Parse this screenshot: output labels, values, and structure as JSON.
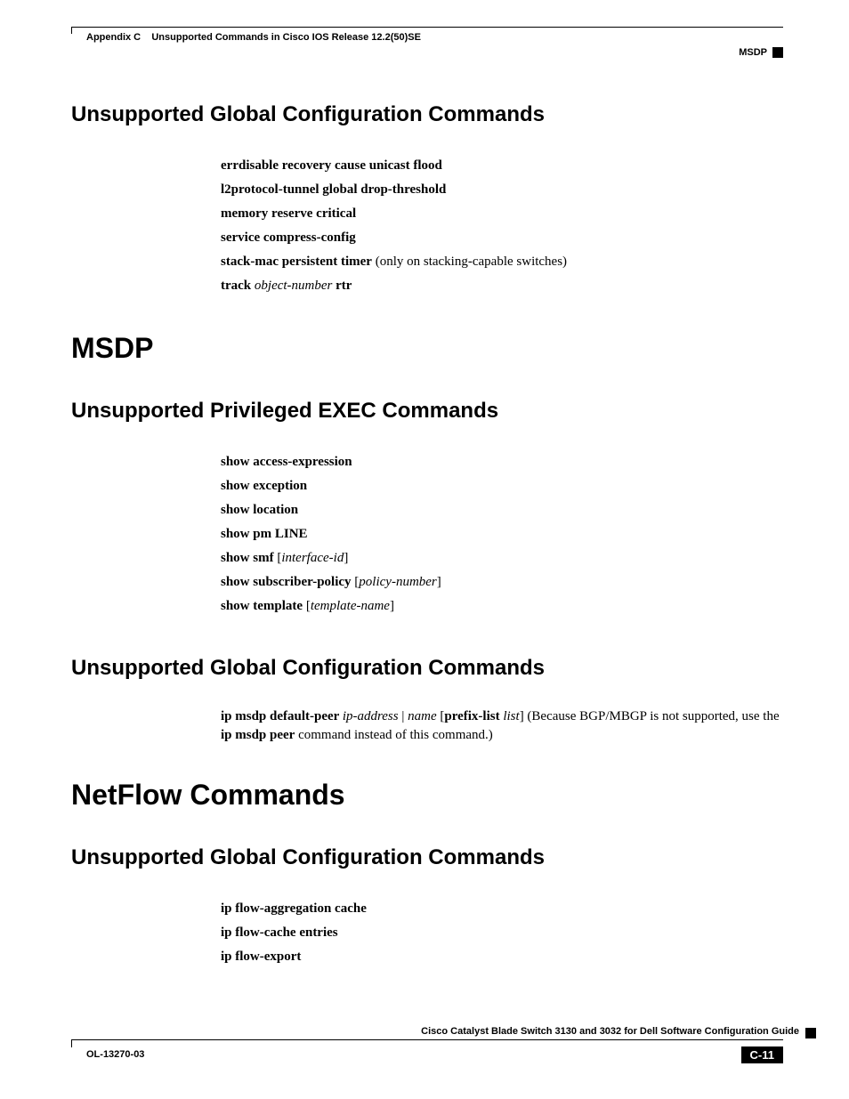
{
  "header": {
    "appendix": "Appendix C",
    "title": "Unsupported Commands in Cisco IOS Release 12.2(50)SE",
    "section": "MSDP"
  },
  "sections": [
    {
      "heading_level": 2,
      "heading": "Unsupported Global Configuration Commands",
      "items": [
        {
          "parts": [
            {
              "t": "errdisable recovery cause unicast flood",
              "b": true
            }
          ]
        },
        {
          "parts": [
            {
              "t": "l2protocol-tunnel global drop-threshold",
              "b": true
            }
          ]
        },
        {
          "parts": [
            {
              "t": "memory reserve critical",
              "b": true
            }
          ]
        },
        {
          "parts": [
            {
              "t": "service compress-config",
              "b": true
            }
          ]
        },
        {
          "parts": [
            {
              "t": "stack-mac persistent timer",
              "b": true
            },
            {
              "t": " (only on stacking-capable switches)"
            }
          ]
        },
        {
          "parts": [
            {
              "t": "track ",
              "b": true
            },
            {
              "t": "object-number",
              "i": true
            },
            {
              "t": " rtr",
              "b": true
            }
          ]
        }
      ]
    },
    {
      "heading_level": 1,
      "heading": "MSDP"
    },
    {
      "heading_level": 2,
      "heading": "Unsupported Privileged EXEC Commands",
      "items": [
        {
          "parts": [
            {
              "t": "show access-expression",
              "b": true
            }
          ]
        },
        {
          "parts": [
            {
              "t": "show exception",
              "b": true
            }
          ]
        },
        {
          "parts": [
            {
              "t": "show location",
              "b": true
            }
          ]
        },
        {
          "parts": [
            {
              "t": "show pm LINE",
              "b": true
            }
          ]
        },
        {
          "parts": [
            {
              "t": "show smf",
              "b": true
            },
            {
              "t": " ["
            },
            {
              "t": "interface-id",
              "i": true
            },
            {
              "t": "]"
            }
          ]
        },
        {
          "parts": [
            {
              "t": "show subscriber-policy",
              "b": true
            },
            {
              "t": " ["
            },
            {
              "t": "policy-number",
              "i": true
            },
            {
              "t": "]"
            }
          ]
        },
        {
          "parts": [
            {
              "t": "show template",
              "b": true
            },
            {
              "t": " ["
            },
            {
              "t": "template-name",
              "i": true
            },
            {
              "t": "]"
            }
          ]
        }
      ]
    },
    {
      "heading_level": 2,
      "heading": "Unsupported Global Configuration Commands",
      "gap": true,
      "body": [
        {
          "parts": [
            {
              "t": "ip msdp default-peer ",
              "b": true
            },
            {
              "t": "ip-address",
              "i": true
            },
            {
              "t": " | "
            },
            {
              "t": "name",
              "i": true
            },
            {
              "t": " ["
            },
            {
              "t": "prefix-list",
              "b": true
            },
            {
              "t": " "
            },
            {
              "t": "list",
              "i": true
            },
            {
              "t": "] (Because BGP/MBGP is not supported, use the "
            },
            {
              "t": "ip msdp peer",
              "b": true
            },
            {
              "t": " command instead of this command.)"
            }
          ]
        }
      ]
    },
    {
      "heading_level": 1,
      "heading": "NetFlow Commands"
    },
    {
      "heading_level": 2,
      "heading": "Unsupported Global Configuration Commands",
      "items": [
        {
          "parts": [
            {
              "t": "ip flow-aggregation cache",
              "b": true
            }
          ]
        },
        {
          "parts": [
            {
              "t": "ip flow-cache entries",
              "b": true
            }
          ]
        },
        {
          "parts": [
            {
              "t": "ip flow-export",
              "b": true
            }
          ]
        }
      ]
    }
  ],
  "footer": {
    "guide_title": "Cisco Catalyst Blade Switch 3130 and 3032 for Dell Software Configuration Guide",
    "doc_id": "OL-13270-03",
    "page_number": "C-11"
  }
}
